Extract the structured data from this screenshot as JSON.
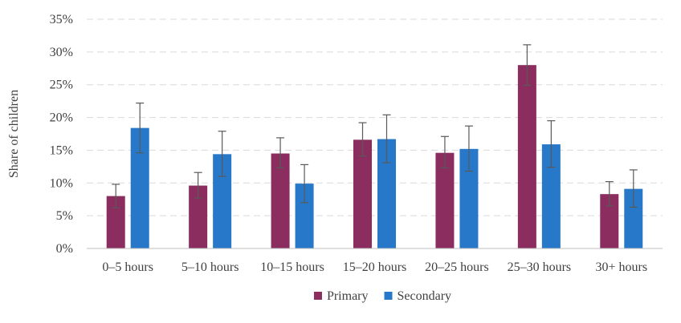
{
  "chart_data": {
    "type": "bar",
    "title": "",
    "xlabel": "",
    "ylabel": "Share of children",
    "ylim": [
      0,
      35
    ],
    "yticks": [
      0,
      5,
      10,
      15,
      20,
      25,
      30,
      35
    ],
    "ytick_labels": [
      "0%",
      "5%",
      "10%",
      "15%",
      "20%",
      "25%",
      "30%",
      "35%"
    ],
    "grid": true,
    "legend_position": "bottom",
    "categories": [
      "0–5 hours",
      "5–10 hours",
      "10–15 hours",
      "15–20 hours",
      "20–25 hours",
      "25–30 hours",
      "30+ hours"
    ],
    "series": [
      {
        "name": "Primary",
        "color": "#8B2D5F",
        "values": [
          8.0,
          9.6,
          14.5,
          16.6,
          14.6,
          28.0,
          8.3
        ],
        "error_low": [
          6.2,
          7.7,
          12.3,
          14.1,
          12.3,
          24.9,
          6.5
        ],
        "error_high": [
          9.8,
          11.6,
          16.9,
          19.2,
          17.1,
          31.1,
          10.2
        ]
      },
      {
        "name": "Secondary",
        "color": "#2778C8",
        "values": [
          18.4,
          14.4,
          9.9,
          16.7,
          15.2,
          15.9,
          9.1
        ],
        "error_low": [
          14.6,
          11.0,
          7.0,
          13.1,
          11.8,
          12.4,
          6.3
        ],
        "error_high": [
          22.2,
          17.9,
          12.8,
          20.4,
          18.7,
          19.5,
          12.0
        ]
      }
    ]
  }
}
